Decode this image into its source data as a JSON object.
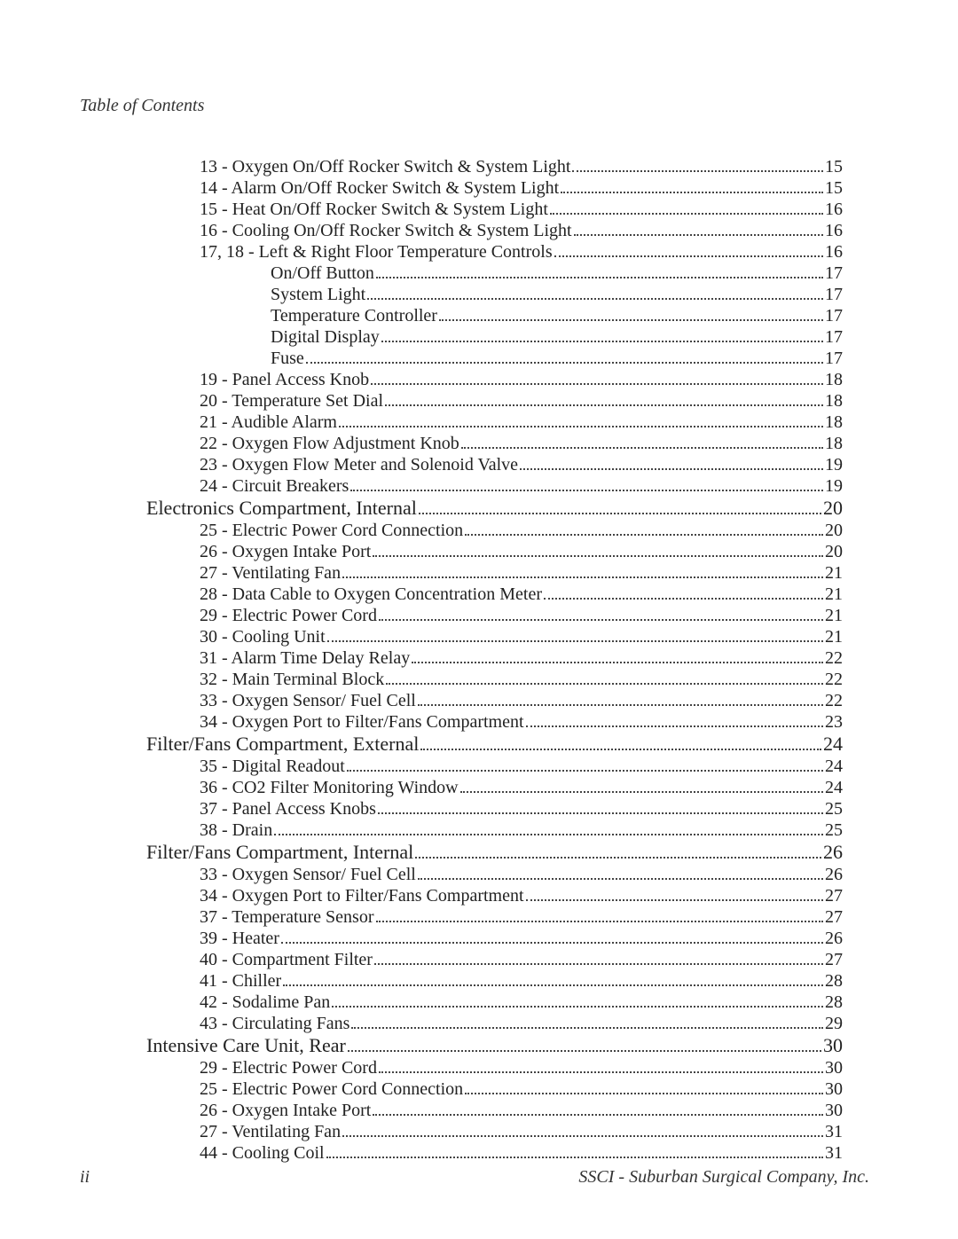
{
  "header": {
    "title": "Table of Contents"
  },
  "footer": {
    "page_num": "ii",
    "company": "SSCI - Suburban Surgical Company, Inc."
  },
  "toc": [
    {
      "level": 1,
      "title": "13 - Oxygen On/Off Rocker Switch & System Light",
      "page": "15"
    },
    {
      "level": 1,
      "title": "14 - Alarm On/Off Rocker Switch & System Light",
      "page": "15"
    },
    {
      "level": 1,
      "title": "15 - Heat On/Off Rocker Switch & System Light",
      "page": "16"
    },
    {
      "level": 1,
      "title": "16 - Cooling On/Off Rocker Switch & System Light",
      "page": "16"
    },
    {
      "level": 1,
      "title": "17, 18 - Left & Right Floor Temperature Controls",
      "page": "16"
    },
    {
      "level": 2,
      "title": "On/Off Button",
      "page": "17"
    },
    {
      "level": 2,
      "title": "System Light",
      "page": "17"
    },
    {
      "level": 2,
      "title": "Temperature Controller",
      "page": "17"
    },
    {
      "level": 2,
      "title": "Digital Display",
      "page": "17"
    },
    {
      "level": 2,
      "title": "Fuse",
      "page": "17"
    },
    {
      "level": 1,
      "title": "19 - Panel Access Knob",
      "page": "18"
    },
    {
      "level": 1,
      "title": "20 - Temperature Set Dial",
      "page": "18"
    },
    {
      "level": 1,
      "title": "21 - Audible Alarm",
      "page": "18"
    },
    {
      "level": 1,
      "title": "22 - Oxygen Flow Adjustment Knob",
      "page": "18"
    },
    {
      "level": 1,
      "title": "23 - Oxygen Flow Meter and Solenoid Valve",
      "page": "19"
    },
    {
      "level": 1,
      "title": "24 - Circuit Breakers",
      "page": "19"
    },
    {
      "level": 0,
      "title": "Electronics Compartment, Internal",
      "page": "20"
    },
    {
      "level": 1,
      "title": "25 - Electric Power Cord Connection",
      "page": "20"
    },
    {
      "level": 1,
      "title": "26 - Oxygen Intake Port",
      "page": "20"
    },
    {
      "level": 1,
      "title": "27 - Ventilating Fan",
      "page": "21"
    },
    {
      "level": 1,
      "title": "28 - Data Cable to Oxygen Concentration Meter",
      "page": "21"
    },
    {
      "level": 1,
      "title": "29 - Electric Power Cord",
      "page": "21"
    },
    {
      "level": 1,
      "title": "30 - Cooling Unit",
      "page": "21"
    },
    {
      "level": 1,
      "title": "31 - Alarm Time Delay Relay",
      "page": "22"
    },
    {
      "level": 1,
      "title": "32 - Main Terminal Block",
      "page": "22"
    },
    {
      "level": 1,
      "title": "33 - Oxygen Sensor/ Fuel Cell",
      "page": "22"
    },
    {
      "level": 1,
      "title": "34 - Oxygen Port to Filter/Fans Compartment",
      "page": "23"
    },
    {
      "level": 0,
      "title": "Filter/Fans Compartment, External",
      "page": "24"
    },
    {
      "level": 1,
      "title": "35 - Digital Readout",
      "page": "24"
    },
    {
      "level": 1,
      "title": "36 - CO2 Filter Monitoring Window",
      "page": "24"
    },
    {
      "level": 1,
      "title": "37 - Panel Access Knobs",
      "page": "25"
    },
    {
      "level": 1,
      "title": "38 - Drain",
      "page": "25"
    },
    {
      "level": 0,
      "title": "Filter/Fans Compartment, Internal",
      "page": "26"
    },
    {
      "level": 1,
      "title": "33 - Oxygen Sensor/ Fuel Cell",
      "page": "26"
    },
    {
      "level": 1,
      "title": "34 - Oxygen Port to Filter/Fans Compartment",
      "page": "27"
    },
    {
      "level": 1,
      "title": "37 - Temperature Sensor",
      "page": "27"
    },
    {
      "level": 1,
      "title": "39 - Heater",
      "page": "26"
    },
    {
      "level": 1,
      "title": "40 - Compartment Filter",
      "page": "27"
    },
    {
      "level": 1,
      "title": "41 - Chiller",
      "page": "28"
    },
    {
      "level": 1,
      "title": "42 - Sodalime Pan",
      "page": "28"
    },
    {
      "level": 1,
      "title": "43 - Circulating Fans",
      "page": "29"
    },
    {
      "level": 0,
      "title": "Intensive Care Unit, Rear",
      "page": "30"
    },
    {
      "level": 1,
      "title": "29 - Electric Power Cord",
      "page": "30"
    },
    {
      "level": 1,
      "title": "25 - Electric Power Cord Connection",
      "page": "30"
    },
    {
      "level": 1,
      "title": "26 - Oxygen Intake Port",
      "page": "30"
    },
    {
      "level": 1,
      "title": "27 - Ventilating Fan",
      "page": "31"
    },
    {
      "level": 1,
      "title": "44 - Cooling Coil",
      "page": "31"
    }
  ]
}
